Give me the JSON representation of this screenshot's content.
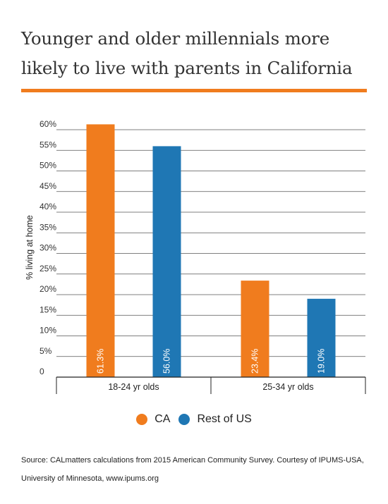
{
  "title": "Younger and older millennials more likely to live with parents in California",
  "source": "Source: CALmatters calculations from 2015 American Community Survey. Courtesy of  IPUMS-USA, University of Minnesota, www.ipums.org",
  "colors": {
    "accent": "#f07c1e",
    "CA": "#f07c1e",
    "Rest of US": "#1f77b4"
  },
  "chart_data": {
    "type": "bar",
    "title": "Younger and older millennials more likely to live with parents in California",
    "xlabel": "",
    "ylabel": "% living at home",
    "ylim": [
      0,
      60
    ],
    "y_ticks": [
      "0",
      "5%",
      "10%",
      "15%",
      "20%",
      "25%",
      "30%",
      "35%",
      "40%",
      "45%",
      "50%",
      "55%",
      "60%"
    ],
    "y_tick_values": [
      0,
      5,
      10,
      15,
      20,
      25,
      30,
      35,
      40,
      45,
      50,
      55,
      60
    ],
    "categories": [
      "18-24 yr olds",
      "25-34 yr olds"
    ],
    "series": [
      {
        "name": "CA",
        "values": [
          61.3,
          23.4
        ],
        "labels": [
          "61.3%",
          "23.4%"
        ]
      },
      {
        "name": "Rest of US",
        "values": [
          56.0,
          19.0
        ],
        "labels": [
          "56.0%",
          "19.0%"
        ]
      }
    ],
    "grid": true,
    "legend_position": "bottom"
  }
}
